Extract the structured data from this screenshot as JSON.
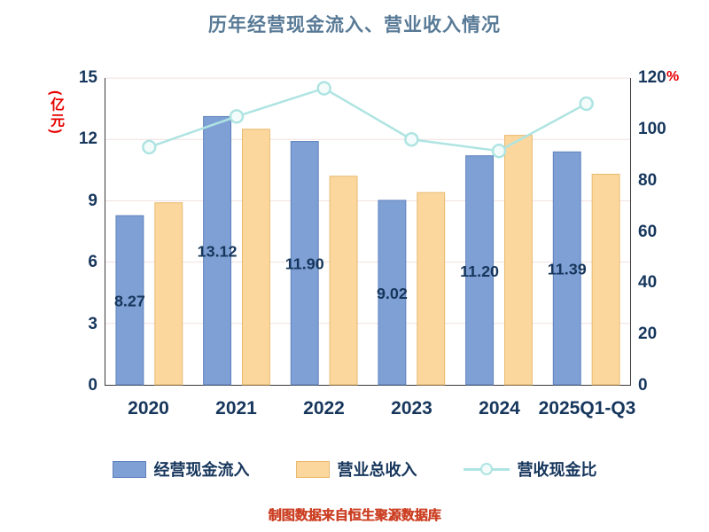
{
  "chart_data": {
    "type": "bar+line",
    "title": "历年经营现金流入、营业收入情况",
    "categories": [
      "2020",
      "2021",
      "2022",
      "2023",
      "2024",
      "2025Q1-Q3"
    ],
    "series": [
      {
        "name": "经营现金流入",
        "type": "bar",
        "axis": "left",
        "color": "#7fa0d4",
        "border": "#5e82be",
        "values": [
          8.27,
          13.12,
          11.9,
          9.02,
          11.2,
          11.39
        ],
        "labels": [
          "8.27",
          "13.12",
          "11.90",
          "9.02",
          "11.20",
          "11.39"
        ]
      },
      {
        "name": "营业总收入",
        "type": "bar",
        "axis": "left",
        "color": "#fbd79e",
        "border": "#e8b96e",
        "values": [
          8.9,
          12.5,
          10.2,
          9.4,
          12.2,
          10.3
        ]
      },
      {
        "name": "营收现金比",
        "type": "line",
        "axis": "right",
        "color": "#aee4e2",
        "marker_fill": "#f4fcfb",
        "values": [
          93,
          105,
          116,
          96,
          91.5,
          110
        ]
      }
    ],
    "left_axis": {
      "unit": "(亿元)",
      "min": 0,
      "max": 15,
      "ticks": [
        0,
        3,
        6,
        9,
        12,
        15
      ]
    },
    "right_axis": {
      "unit": "%",
      "min": 0,
      "max": 120,
      "ticks": [
        0,
        20,
        40,
        60,
        80,
        100,
        120
      ]
    },
    "grid": true,
    "gridline_color": "#f3dfdf",
    "axis_text_color": "#16365c",
    "legend_position": "bottom"
  },
  "footer": {
    "text": "制图数据来自恒生聚源数据库"
  }
}
